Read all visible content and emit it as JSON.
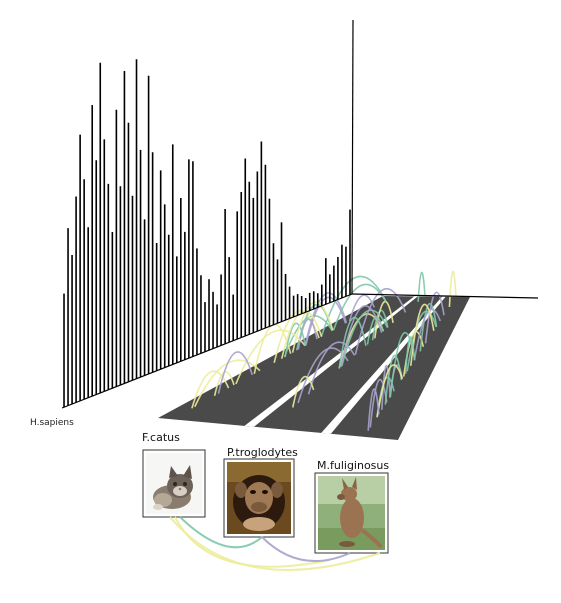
{
  "human_label": "H.sapiens",
  "colors": {
    "background": "#ffffff",
    "bar": "#000000",
    "axis": "#000000",
    "track": "#4a4a4a",
    "track_gap": "#ffffff",
    "link_green": "#7fc8a8",
    "link_yellow": "#ecec9a",
    "link_purple": "#a7a3cc",
    "card_border": "#333333"
  },
  "histogram": {
    "bar_heights": [
      0.32,
      0.5,
      0.42,
      0.58,
      0.75,
      0.62,
      0.48,
      0.82,
      0.66,
      0.93,
      0.71,
      0.58,
      0.44,
      0.78,
      0.56,
      0.88,
      0.73,
      0.52,
      0.9,
      0.64,
      0.44,
      0.84,
      0.62,
      0.36,
      0.56,
      0.46,
      0.37,
      0.62,
      0.3,
      0.46,
      0.36,
      0.56,
      0.55,
      0.3,
      0.22,
      0.14,
      0.2,
      0.16,
      0.12,
      0.2,
      0.38,
      0.24,
      0.13,
      0.36,
      0.41,
      0.5,
      0.43,
      0.38,
      0.45,
      0.53,
      0.46,
      0.36,
      0.23,
      0.18,
      0.28,
      0.13,
      0.09,
      0.06,
      0.06,
      0.05,
      0.04,
      0.05,
      0.05,
      0.04,
      0.06,
      0.13,
      0.08,
      0.1,
      0.12,
      0.15,
      0.14,
      0.24
    ]
  },
  "tracks": [
    {
      "id": "track-1"
    },
    {
      "id": "track-2"
    },
    {
      "id": "track-3"
    }
  ],
  "species": [
    {
      "label": "F.catus",
      "picture": "cat-photo"
    },
    {
      "label": "P.troglodytes",
      "picture": "chimpanzee-photo"
    },
    {
      "label": "M.fuliginosus",
      "picture": "kangaroo-photo"
    }
  ]
}
